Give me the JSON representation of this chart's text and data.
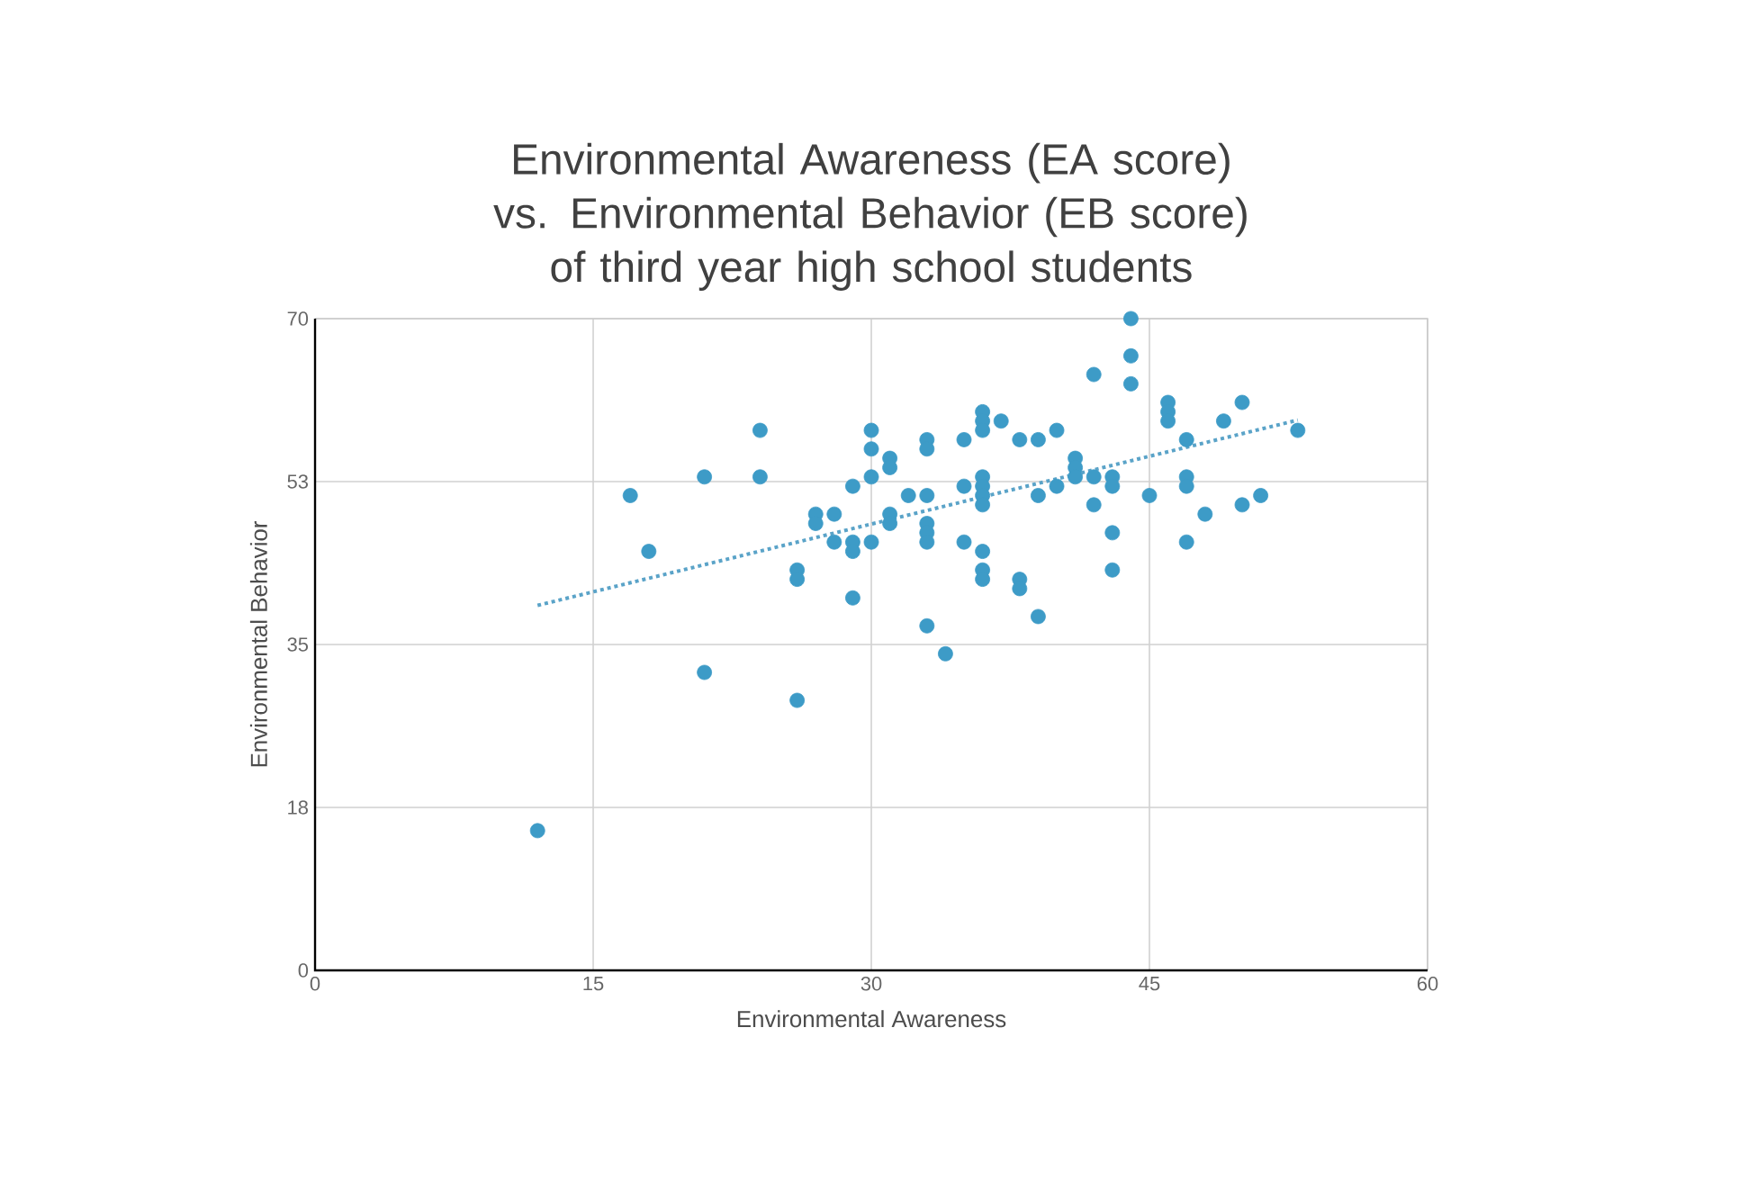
{
  "chart_data": {
    "type": "scatter",
    "title": "Environmental Awareness (EA score) vs. Environmental Behavior (EB score) of third year high school students",
    "xlabel": "Environmental Awareness",
    "ylabel": "Environmental Behavior",
    "xlim": [
      0,
      60
    ],
    "xticks": [
      0,
      15,
      30,
      45,
      60
    ],
    "ylim": [
      0,
      70
    ],
    "yticks": [
      0,
      {
        "value": 17.5,
        "label": "18"
      },
      35,
      {
        "value": 52.5,
        "label": "53"
      },
      70
    ],
    "grid": true,
    "marker": "circle",
    "series": [
      {
        "color": "#3d9bc7",
        "x": [
          12,
          17,
          18,
          21,
          21,
          24,
          24,
          26,
          26,
          26,
          27,
          27,
          28,
          28,
          29,
          29,
          29,
          29,
          30,
          30,
          30,
          30,
          31,
          31,
          31,
          31,
          32,
          33,
          33,
          33,
          33,
          33,
          33,
          33,
          34,
          35,
          35,
          35,
          36,
          36,
          36,
          36,
          36,
          36,
          36,
          36,
          36,
          36,
          37,
          38,
          38,
          38,
          39,
          39,
          39,
          40,
          40,
          41,
          41,
          41,
          42,
          42,
          42,
          43,
          43,
          43,
          43,
          44,
          44,
          44,
          45,
          46,
          46,
          46,
          47,
          47,
          47,
          47,
          48,
          49,
          50,
          50,
          51,
          53
        ],
        "values": [
          15,
          51,
          45,
          53,
          32,
          58,
          53,
          43,
          42,
          29,
          49,
          48,
          49,
          46,
          52,
          46,
          45,
          40,
          58,
          56,
          53,
          46,
          55,
          54,
          49,
          48,
          51,
          51,
          57,
          56,
          48,
          47,
          46,
          37,
          34,
          57,
          52,
          46,
          60,
          59,
          58,
          53,
          52,
          51,
          50,
          45,
          43,
          42,
          59,
          57,
          42,
          41,
          57,
          51,
          38,
          58,
          52,
          55,
          54,
          53,
          53,
          64,
          50,
          53,
          52,
          47,
          43,
          70,
          66,
          63,
          51,
          61,
          60,
          59,
          57,
          53,
          52,
          46,
          49,
          59,
          61,
          50,
          51,
          58
        ]
      },
      {
        "type": "line",
        "color": "#5aa3c8",
        "line_style": "dotted",
        "marker": "none",
        "x": [
          12,
          53
        ],
        "values": [
          39.2,
          59.1
        ]
      }
    ]
  }
}
